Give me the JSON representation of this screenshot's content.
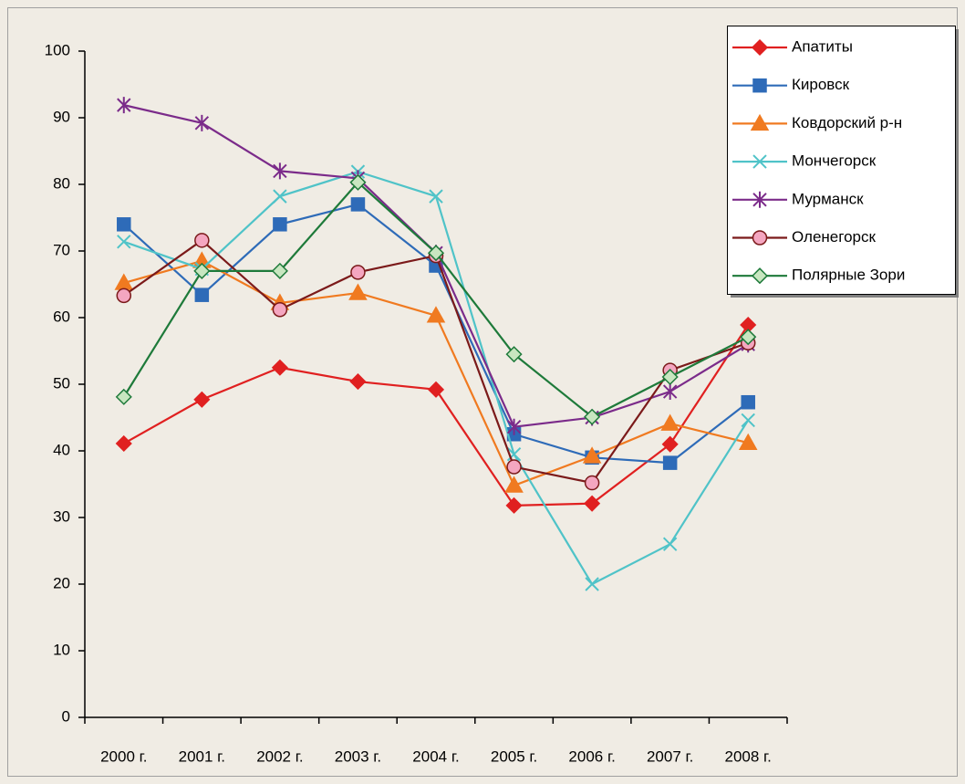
{
  "chart_data": {
    "type": "line",
    "categories": [
      "2000 г.",
      "2001 г.",
      "2002 г.",
      "2003 г.",
      "2004 г.",
      "2005 г.",
      "2006 г.",
      "2007 г.",
      "2008 г."
    ],
    "series": [
      {
        "name": "Апатиты",
        "color": "#e02020",
        "fill": "#e02020",
        "marker": "diamond",
        "values": [
          41.1,
          47.7,
          52.5,
          50.4,
          49.2,
          31.8,
          32.1,
          41,
          58.9
        ]
      },
      {
        "name": "Кировск",
        "color": "#2e6bb8",
        "fill": "#2e6bb8",
        "marker": "square",
        "values": [
          74,
          63.4,
          74,
          77,
          67.8,
          42.5,
          39,
          38.2,
          47.3
        ]
      },
      {
        "name": "Ковдорский р-н",
        "color": "#f07a20",
        "fill": "#f07a20",
        "marker": "triangle",
        "values": [
          65.2,
          68.5,
          62.2,
          63.7,
          60.3,
          34.8,
          39.2,
          44.1,
          41.2
        ]
      },
      {
        "name": "Мончегорск",
        "color": "#4fc3c8",
        "fill": "none",
        "marker": "x",
        "values": [
          71.4,
          67.3,
          78.2,
          81.9,
          78.2,
          39.5,
          20,
          26,
          44.6
        ]
      },
      {
        "name": "Мурманск",
        "color": "#7b2b8a",
        "fill": "none",
        "marker": "star",
        "values": [
          91.9,
          89.2,
          82,
          80.9,
          69.7,
          43.6,
          45,
          48.9,
          56
        ]
      },
      {
        "name": "Оленегорск",
        "color": "#7b1a1a",
        "fill": "#f4a6c0",
        "marker": "circle",
        "values": [
          63.3,
          71.6,
          61.2,
          66.8,
          69.3,
          37.6,
          35.2,
          52.1,
          56.2
        ]
      },
      {
        "name": "Полярные Зори",
        "color": "#1e7a3a",
        "fill": "#c8e6c0",
        "marker": "diamond",
        "values": [
          48.1,
          67,
          67,
          80.3,
          69.7,
          54.5,
          45.1,
          51.1,
          57.1
        ]
      }
    ],
    "ylim": [
      0,
      100
    ],
    "yticks": [
      0,
      10,
      20,
      30,
      40,
      50,
      60,
      70,
      80,
      90,
      100
    ],
    "grid": false,
    "legend": "top-right"
  }
}
